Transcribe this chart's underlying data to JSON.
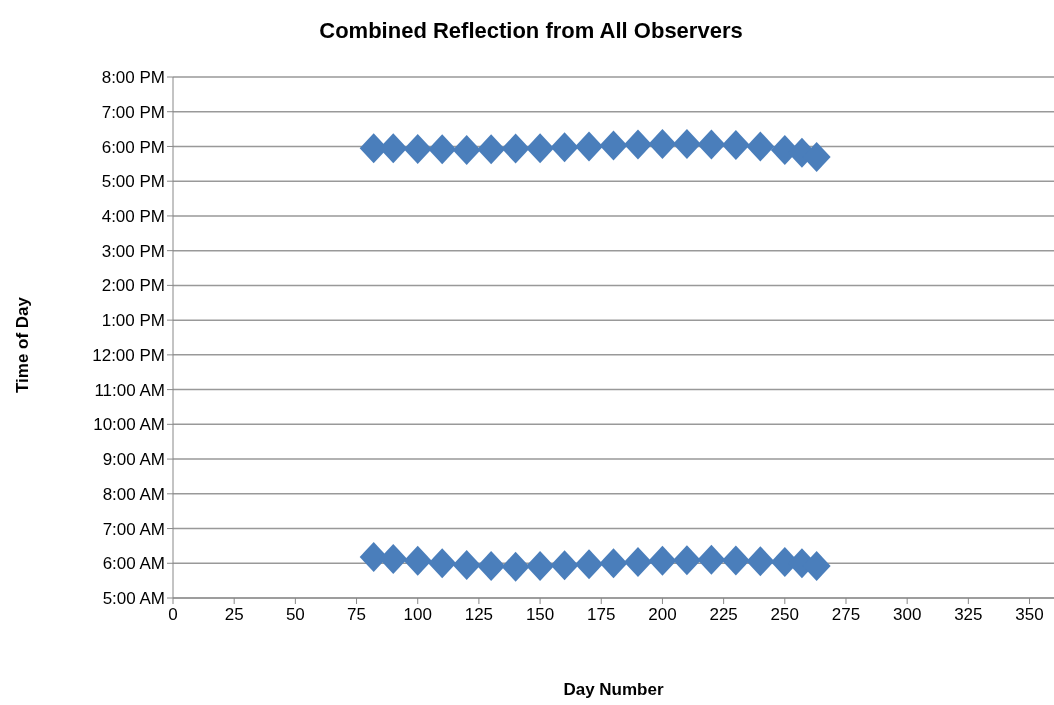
{
  "chart_data": {
    "type": "scatter",
    "title": "Combined Reflection from All Observers",
    "xlabel": "Day Number",
    "ylabel": "Time of Day",
    "xlim": [
      0,
      360
    ],
    "xticks": [
      0,
      25,
      50,
      75,
      100,
      125,
      150,
      175,
      200,
      225,
      250,
      275,
      300,
      325,
      350
    ],
    "ylim": [
      5,
      20
    ],
    "yticks": [
      {
        "value": 5,
        "label": "5:00 AM"
      },
      {
        "value": 6,
        "label": "6:00 AM"
      },
      {
        "value": 7,
        "label": "7:00 AM"
      },
      {
        "value": 8,
        "label": "8:00 AM"
      },
      {
        "value": 9,
        "label": "9:00 AM"
      },
      {
        "value": 10,
        "label": "10:00 AM"
      },
      {
        "value": 11,
        "label": "11:00 AM"
      },
      {
        "value": 12,
        "label": "12:00 PM"
      },
      {
        "value": 13,
        "label": "1:00 PM"
      },
      {
        "value": 14,
        "label": "2:00 PM"
      },
      {
        "value": 15,
        "label": "3:00 PM"
      },
      {
        "value": 16,
        "label": "4:00 PM"
      },
      {
        "value": 17,
        "label": "5:00 PM"
      },
      {
        "value": 18,
        "label": "6:00 PM"
      },
      {
        "value": 19,
        "label": "7:00 PM"
      },
      {
        "value": 20,
        "label": "8:00 PM"
      }
    ],
    "grid": "y",
    "marker": "diamond",
    "series": [
      {
        "color": "#4a7ebb",
        "x": [
          82,
          90,
          100,
          110,
          120,
          130,
          140,
          150,
          160,
          170,
          180,
          190,
          200,
          210,
          220,
          230,
          240,
          250,
          257,
          263
        ],
        "values": [
          17.95,
          17.95,
          17.93,
          17.92,
          17.9,
          17.92,
          17.94,
          17.95,
          17.98,
          18.0,
          18.03,
          18.06,
          18.07,
          18.07,
          18.06,
          18.04,
          18.0,
          17.9,
          17.82,
          17.7
        ]
      },
      {
        "color": "#4a7ebb",
        "x": [
          82,
          90,
          100,
          110,
          120,
          130,
          140,
          150,
          160,
          170,
          180,
          190,
          200,
          210,
          220,
          230,
          240,
          250,
          257,
          263
        ],
        "values": [
          6.18,
          6.12,
          6.07,
          6.0,
          5.95,
          5.92,
          5.9,
          5.92,
          5.94,
          5.97,
          6.0,
          6.04,
          6.07,
          6.09,
          6.1,
          6.08,
          6.06,
          6.04,
          6.0,
          5.92
        ]
      }
    ]
  }
}
